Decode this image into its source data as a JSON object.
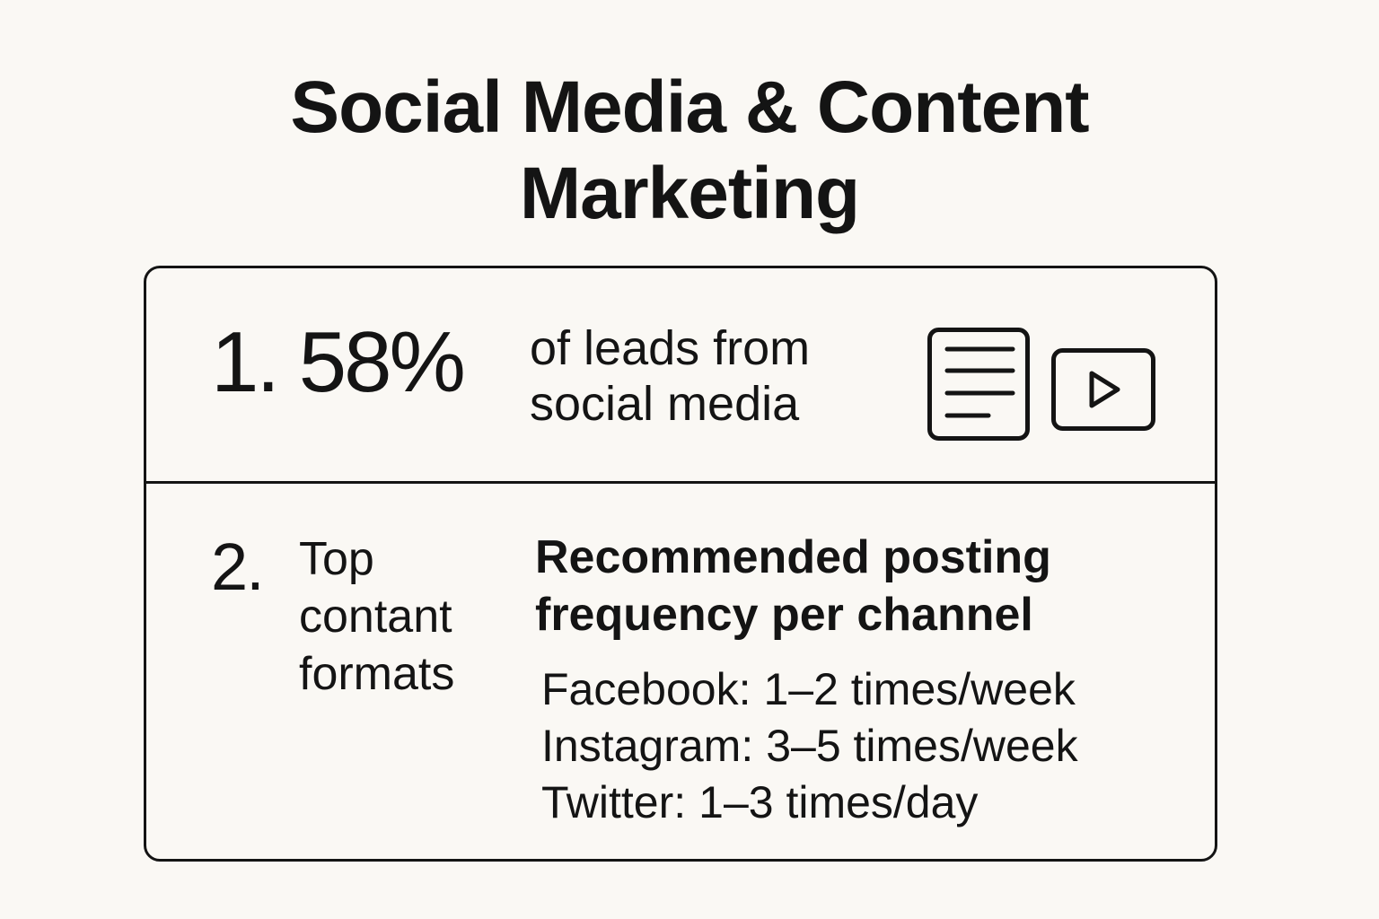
{
  "title": {
    "line1": "Social Media & Content",
    "line2": "Marketing"
  },
  "stat": {
    "number": "1. 58%",
    "desc_line1": "of leads from",
    "desc_line2": "social media"
  },
  "icons": [
    "document-icon",
    "video-play-icon"
  ],
  "formats": {
    "number": "2.",
    "label_line1": "Top",
    "label_line2": "contant",
    "label_line3": "formats"
  },
  "frequency": {
    "heading_line1": "Recommended posting",
    "heading_line2": "frequency per channel",
    "channels": [
      {
        "channel": "Facebook:",
        "rate": "1–2 times/week"
      },
      {
        "channel": "Instagram:",
        "rate": "3–5 times/week"
      },
      {
        "channel": "Twitter:",
        "rate": "1–3 times/day"
      }
    ]
  }
}
